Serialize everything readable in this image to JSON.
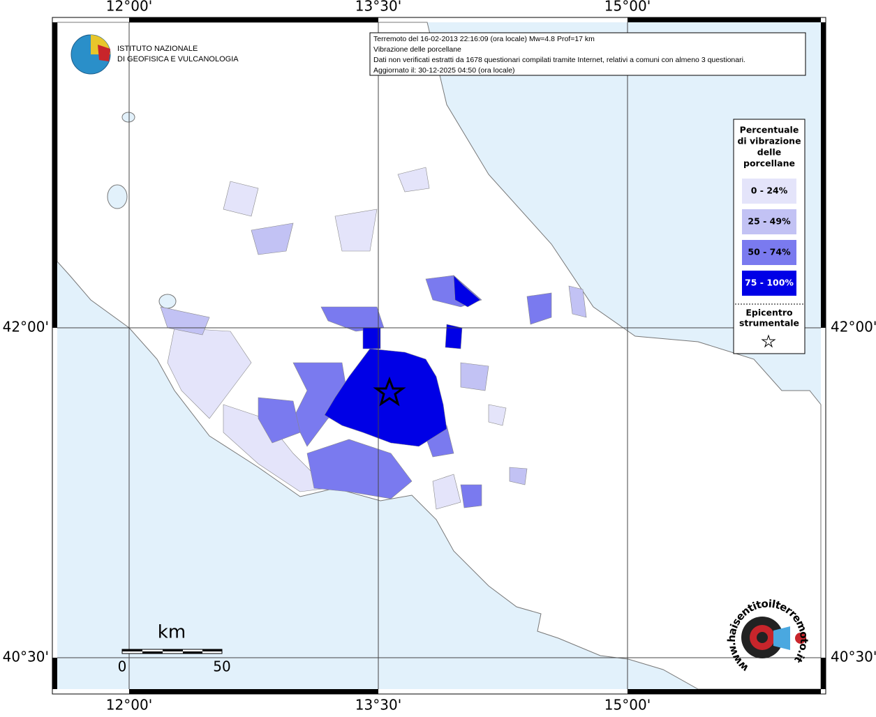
{
  "map": {
    "info": [
      "Terremoto del 16-02-2013 22:16:09 (ora locale) Mw=4.8 Prof=17 km",
      "Vibrazione delle porcellane",
      "Dati non verificati estratti da 1678 questionari compilati tramite Internet, relativi a comuni con almeno 3 questionari.",
      "Aggiornato il: 30-12-2025 04:50 (ora locale)"
    ],
    "lon_labels": [
      "12°00'",
      "13°30'",
      "15°00'"
    ],
    "lat_labels": [
      "42°00'",
      "40°30'"
    ],
    "institute": [
      "ISTITUTO NAZIONALE",
      "DI GEOFISICA E VULCANOLOGIA"
    ],
    "legend": {
      "title": [
        "Percentuale",
        "di vibrazione",
        "delle",
        "porcellane"
      ],
      "classes": [
        {
          "label": "0 - 24%",
          "color": "#e4e4fa"
        },
        {
          "label": "25 - 49%",
          "color": "#c2c2f4"
        },
        {
          "label": "50 - 74%",
          "color": "#7a7aef"
        },
        {
          "label": "75 - 100%",
          "color": "#0000e6"
        }
      ],
      "epicenter": [
        "Epicentro",
        "strumentale"
      ]
    },
    "scale": {
      "unit": "km",
      "labels": [
        "0",
        "50"
      ]
    },
    "website": "www.haisentitoilterremoto.it"
  }
}
